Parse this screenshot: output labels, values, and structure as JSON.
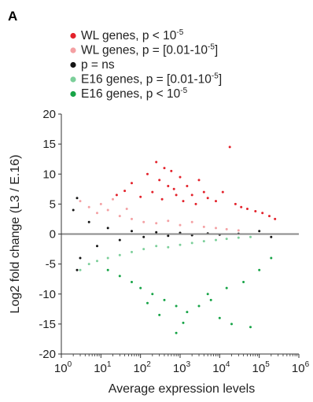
{
  "panel_label": "A",
  "colors": {
    "wl_strong": "#e3222b",
    "wl_weak": "#f4a0a3",
    "ns": "#151515",
    "e16_weak": "#7ccf9a",
    "e16_strong": "#17a447",
    "zero_line": "#8a8a8a",
    "axis": "#333333"
  },
  "chart_data": {
    "type": "scatter",
    "xlabel": "Average expression levels",
    "ylabel": "Log2 fold change (L3 / E.16)",
    "x_scale": "log",
    "xlim": [
      1,
      1000000
    ],
    "ylim": [
      -20,
      20
    ],
    "x_ticks": [
      {
        "base": "10",
        "exp": "0"
      },
      {
        "base": "10",
        "exp": "1"
      },
      {
        "base": "10",
        "exp": "2"
      },
      {
        "base": "10",
        "exp": "3"
      },
      {
        "base": "10",
        "exp": "4"
      },
      {
        "base": "10",
        "exp": "5"
      },
      {
        "base": "10",
        "exp": "6"
      }
    ],
    "y_ticks": [
      "-20",
      "-15",
      "-10",
      "-5",
      "0",
      "5",
      "10",
      "15",
      "20"
    ],
    "grid": false,
    "reference_line_y": 0,
    "legend_position": "top",
    "legend": [
      {
        "text": "WL genes, p < 10",
        "sup": "-5",
        "tail": "",
        "color_key": "wl_strong"
      },
      {
        "text": "WL genes, p = [0.01-10",
        "sup": "-5",
        "tail": "]",
        "color_key": "wl_weak"
      },
      {
        "text": "p = ns",
        "sup": "",
        "tail": "",
        "color_key": "ns"
      },
      {
        "text": "E16 genes, p = [0.01-10",
        "sup": "-5",
        "tail": "]",
        "color_key": "e16_weak"
      },
      {
        "text": "E16 genes, p < 10",
        "sup": "-5",
        "tail": "",
        "color_key": "e16_strong"
      }
    ],
    "series": [
      {
        "name": "WL genes, p < 10^-5",
        "color_key": "wl_strong",
        "points": [
          [
            25,
            6.5
          ],
          [
            40,
            7.2
          ],
          [
            60,
            8.5
          ],
          [
            100,
            6.2
          ],
          [
            150,
            10
          ],
          [
            250,
            12
          ],
          [
            300,
            9
          ],
          [
            400,
            11
          ],
          [
            500,
            8
          ],
          [
            700,
            7.5
          ],
          [
            1000,
            9.5
          ],
          [
            1500,
            8
          ],
          [
            2000,
            6.5
          ],
          [
            3000,
            9
          ],
          [
            4000,
            7
          ],
          [
            5000,
            6
          ],
          [
            8000,
            5.5
          ],
          [
            12000,
            7
          ],
          [
            18000,
            14.5
          ],
          [
            25000,
            5
          ],
          [
            35000,
            4.5
          ],
          [
            50000,
            4.2
          ],
          [
            80000,
            3.8
          ],
          [
            120000,
            3.5
          ],
          [
            180000,
            3
          ],
          [
            250000,
            2.5
          ],
          [
            800,
            6.5
          ],
          [
            1200,
            5.5
          ],
          [
            600,
            10.5
          ],
          [
            200,
            7
          ],
          [
            350,
            5.8
          ],
          [
            2500,
            5
          ]
        ]
      },
      {
        "name": "WL genes, p = [0.01-10^-5]",
        "color_key": "wl_weak",
        "points": [
          [
            3,
            5.5
          ],
          [
            5,
            4.5
          ],
          [
            8,
            3.5
          ],
          [
            15,
            4
          ],
          [
            30,
            3
          ],
          [
            60,
            2.5
          ],
          [
            120,
            2
          ],
          [
            250,
            1.8
          ],
          [
            500,
            2.2
          ],
          [
            1000,
            1.5
          ],
          [
            2000,
            2
          ],
          [
            4000,
            1.2
          ],
          [
            8000,
            1
          ],
          [
            15000,
            0.8
          ],
          [
            30000,
            0.6
          ],
          [
            10,
            5
          ],
          [
            20,
            5.8
          ],
          [
            45,
            4.2
          ]
        ]
      },
      {
        "name": "p = ns",
        "color_key": "ns",
        "points": [
          [
            2,
            4
          ],
          [
            3,
            -4
          ],
          [
            5,
            2
          ],
          [
            8,
            -2
          ],
          [
            15,
            1
          ],
          [
            30,
            -1
          ],
          [
            60,
            0.5
          ],
          [
            120,
            -0.5
          ],
          [
            250,
            0.3
          ],
          [
            500,
            -0.3
          ],
          [
            1000,
            0.2
          ],
          [
            2000,
            -0.2
          ],
          [
            5000,
            0.1
          ],
          [
            10000,
            -0.1
          ],
          [
            30000,
            0.05
          ],
          [
            100000,
            0.5
          ],
          [
            200000,
            -0.5
          ],
          [
            2.5,
            -6
          ],
          [
            2.5,
            6
          ]
        ]
      },
      {
        "name": "E16 genes, p = [0.01-10^-5]",
        "color_key": "e16_weak",
        "points": [
          [
            3,
            -6
          ],
          [
            5,
            -5
          ],
          [
            8,
            -4.5
          ],
          [
            15,
            -4
          ],
          [
            30,
            -3.5
          ],
          [
            60,
            -3
          ],
          [
            120,
            -2.5
          ],
          [
            250,
            -2
          ],
          [
            500,
            -2.2
          ],
          [
            1000,
            -1.8
          ],
          [
            2000,
            -1.5
          ],
          [
            4000,
            -1.2
          ],
          [
            8000,
            -1
          ],
          [
            15000,
            -0.8
          ],
          [
            30000,
            -0.6
          ],
          [
            60000,
            -0.5
          ]
        ]
      },
      {
        "name": "E16 genes, p < 10^-5",
        "color_key": "e16_strong",
        "points": [
          [
            15,
            -6
          ],
          [
            30,
            -7
          ],
          [
            60,
            -8
          ],
          [
            100,
            -9
          ],
          [
            200,
            -10
          ],
          [
            400,
            -11
          ],
          [
            800,
            -12
          ],
          [
            1500,
            -13
          ],
          [
            3000,
            -12
          ],
          [
            6000,
            -11
          ],
          [
            10000,
            -14
          ],
          [
            20000,
            -15
          ],
          [
            60000,
            -15.5
          ],
          [
            800,
            -16.5
          ],
          [
            5000,
            -10
          ],
          [
            15000,
            -9
          ],
          [
            40000,
            -8
          ],
          [
            100000,
            -6
          ],
          [
            200000,
            -4
          ],
          [
            300,
            -13.5
          ],
          [
            1200,
            -14.8
          ],
          [
            150,
            -11.5
          ]
        ]
      }
    ]
  }
}
